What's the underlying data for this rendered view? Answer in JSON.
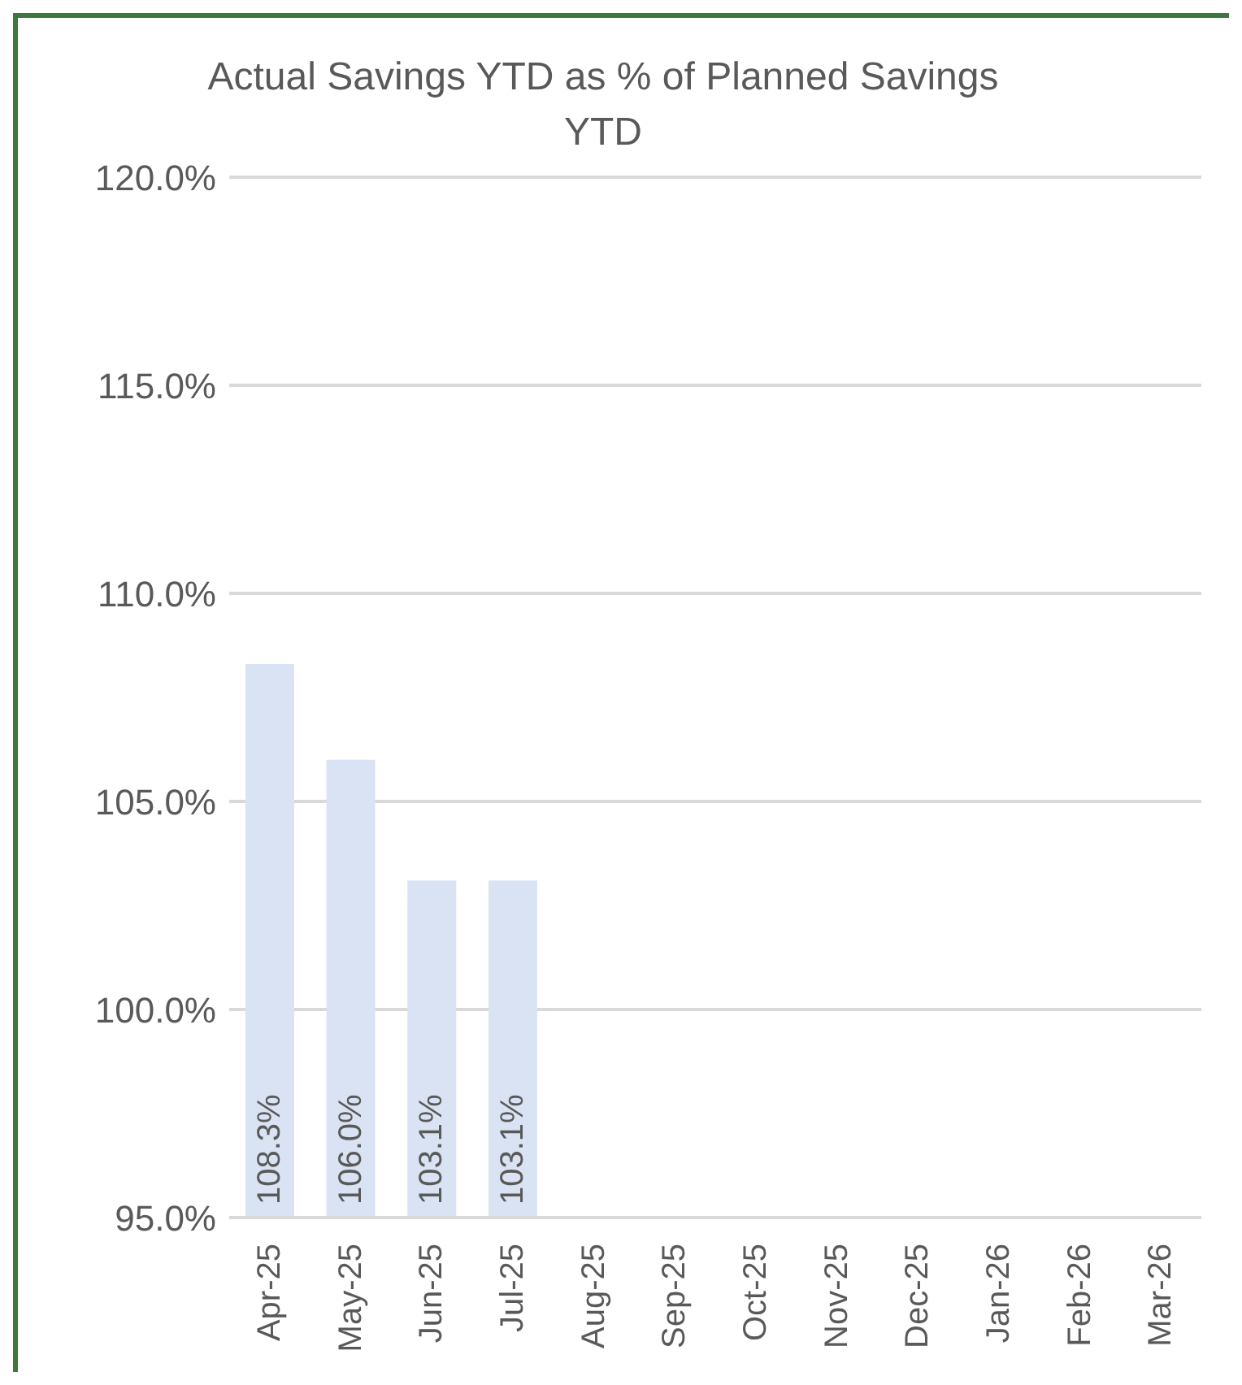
{
  "chart_data": {
    "type": "bar",
    "title": "Actual Savings YTD as % of Planned Savings YTD",
    "categories": [
      "Apr-25",
      "May-25",
      "Jun-25",
      "Jul-25",
      "Aug-25",
      "Sep-25",
      "Oct-25",
      "Nov-25",
      "Dec-25",
      "Jan-26",
      "Feb-26",
      "Mar-26"
    ],
    "values": [
      108.3,
      106.0,
      103.1,
      103.1,
      null,
      null,
      null,
      null,
      null,
      null,
      null,
      null
    ],
    "value_labels": [
      "108.3%",
      "106.0%",
      "103.1%",
      "103.1%",
      null,
      null,
      null,
      null,
      null,
      null,
      null,
      null
    ],
    "color": "#dae3f3",
    "ylim": [
      95,
      120
    ],
    "yticks": [
      {
        "value": 95,
        "label": "95.0%"
      },
      {
        "value": 100,
        "label": "100.0%"
      },
      {
        "value": 105,
        "label": "105.0%"
      },
      {
        "value": 110,
        "label": "110.0%"
      },
      {
        "value": 115,
        "label": "115.0%"
      },
      {
        "value": 120,
        "label": "120.0%"
      }
    ],
    "grid": "y",
    "legend": false
  }
}
